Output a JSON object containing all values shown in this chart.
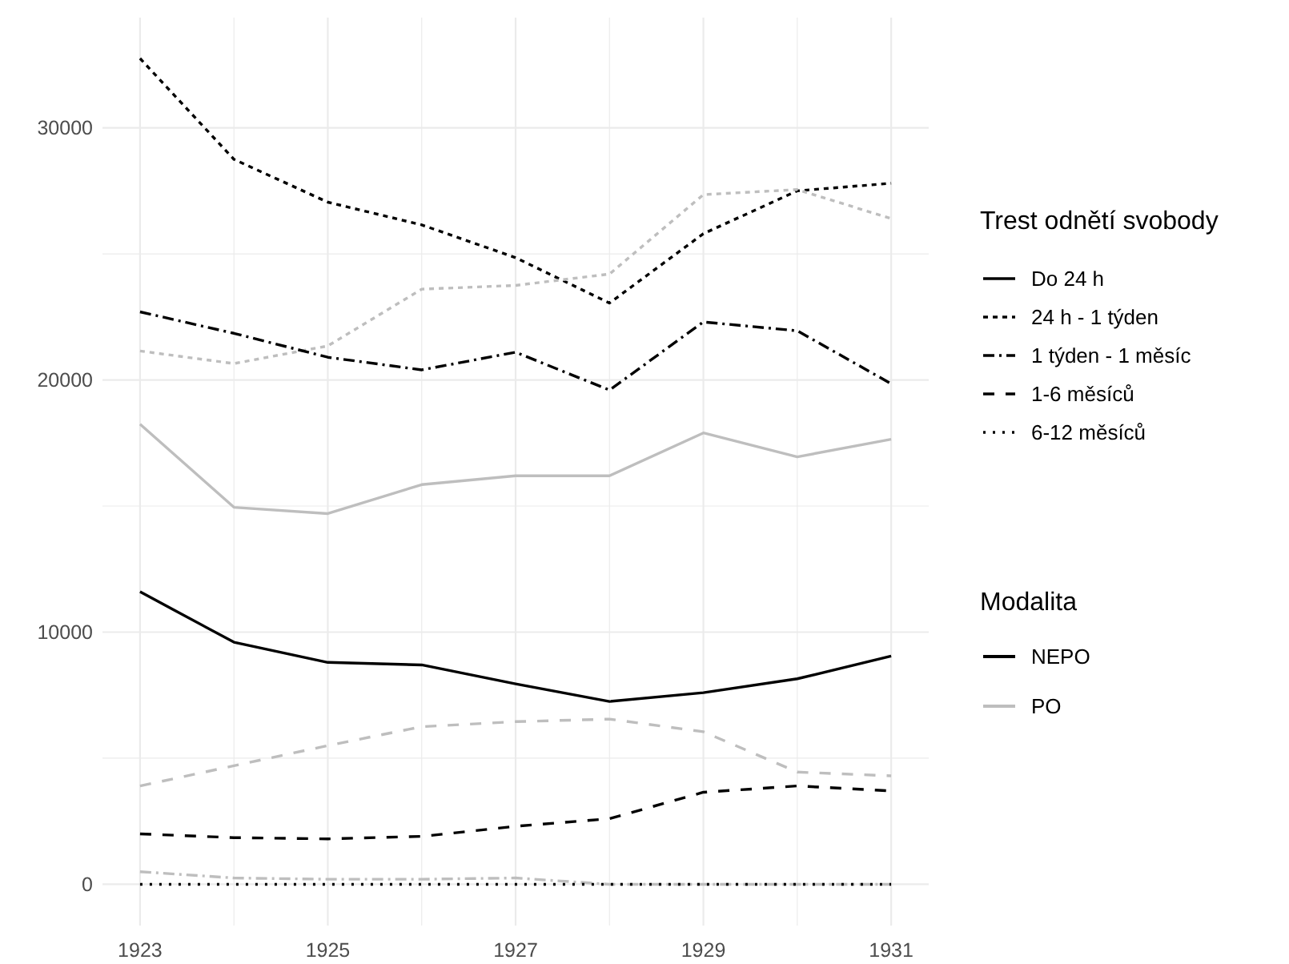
{
  "chart_data": {
    "type": "line",
    "x": [
      1923,
      1924,
      1925,
      1926,
      1927,
      1928,
      1929,
      1930,
      1931
    ],
    "xlim": [
      1922.6,
      1931.4
    ],
    "xticks": [
      1923,
      {
        "value": 1924,
        "label": null
      },
      1925,
      {
        "value": 1926,
        "label": null
      },
      1927,
      {
        "value": 1928,
        "label": null
      },
      1929,
      {
        "value": 1930,
        "label": null
      },
      1931
    ],
    "ylim": [
      -1637,
      34369
    ],
    "yticks": [
      0,
      {
        "value": 5000,
        "label": null
      },
      10000,
      {
        "value": 15000,
        "label": null
      },
      20000,
      {
        "value": 25000,
        "label": null
      },
      30000
    ],
    "grid": true,
    "legend": "right",
    "legend_title": "Trest odnětí svobody",
    "annotations": [
      "Modalita",
      "NEPO",
      "PO"
    ],
    "series": [
      {
        "name": "Do 24 h",
        "color": "#000000",
        "line_style": "solid",
        "values": [
          11600,
          9600,
          8800,
          8700,
          7950,
          7250,
          7600,
          8150,
          9050
        ]
      },
      {
        "color": "#bebebe",
        "line_style": "solid",
        "values": [
          18250,
          14950,
          14700,
          15850,
          16200,
          16200,
          17900,
          16950,
          17650
        ]
      },
      {
        "name": "24 h - 1 týden",
        "color": "#000000",
        "line_style": "dotted",
        "values": [
          32750,
          28750,
          27050,
          26150,
          24850,
          23050,
          25800,
          27500,
          27800
        ]
      },
      {
        "color": "#bebebe",
        "line_style": "dotted",
        "values": [
          21150,
          20650,
          21350,
          23600,
          23750,
          24200,
          27350,
          27550,
          26400
        ]
      },
      {
        "name": "1 týden - 1 měsíc",
        "color": "#000000",
        "line_style": "dashdot",
        "values": [
          22700,
          21850,
          20900,
          20400,
          21100,
          19600,
          22300,
          21950,
          19850
        ]
      },
      {
        "color": "#bebebe",
        "line_style": "dashdot",
        "values": [
          500,
          250,
          200,
          200,
          250,
          0,
          0,
          0,
          0
        ]
      },
      {
        "name": "1-6 měsíců",
        "color": "#000000",
        "line_style": "dashed",
        "values": [
          2000,
          1850,
          1800,
          1900,
          2300,
          2600,
          3650,
          3900,
          3700
        ]
      },
      {
        "color": "#bebebe",
        "line_style": "dashed",
        "values": [
          3900,
          4700,
          5500,
          6250,
          6450,
          6550,
          6050,
          4450,
          4300
        ]
      },
      {
        "name": "6-12 měsíců",
        "color": "#000000",
        "line_style": "finedotted",
        "values": [
          0,
          0,
          0,
          0,
          0,
          0,
          0,
          0,
          0
        ]
      }
    ]
  }
}
